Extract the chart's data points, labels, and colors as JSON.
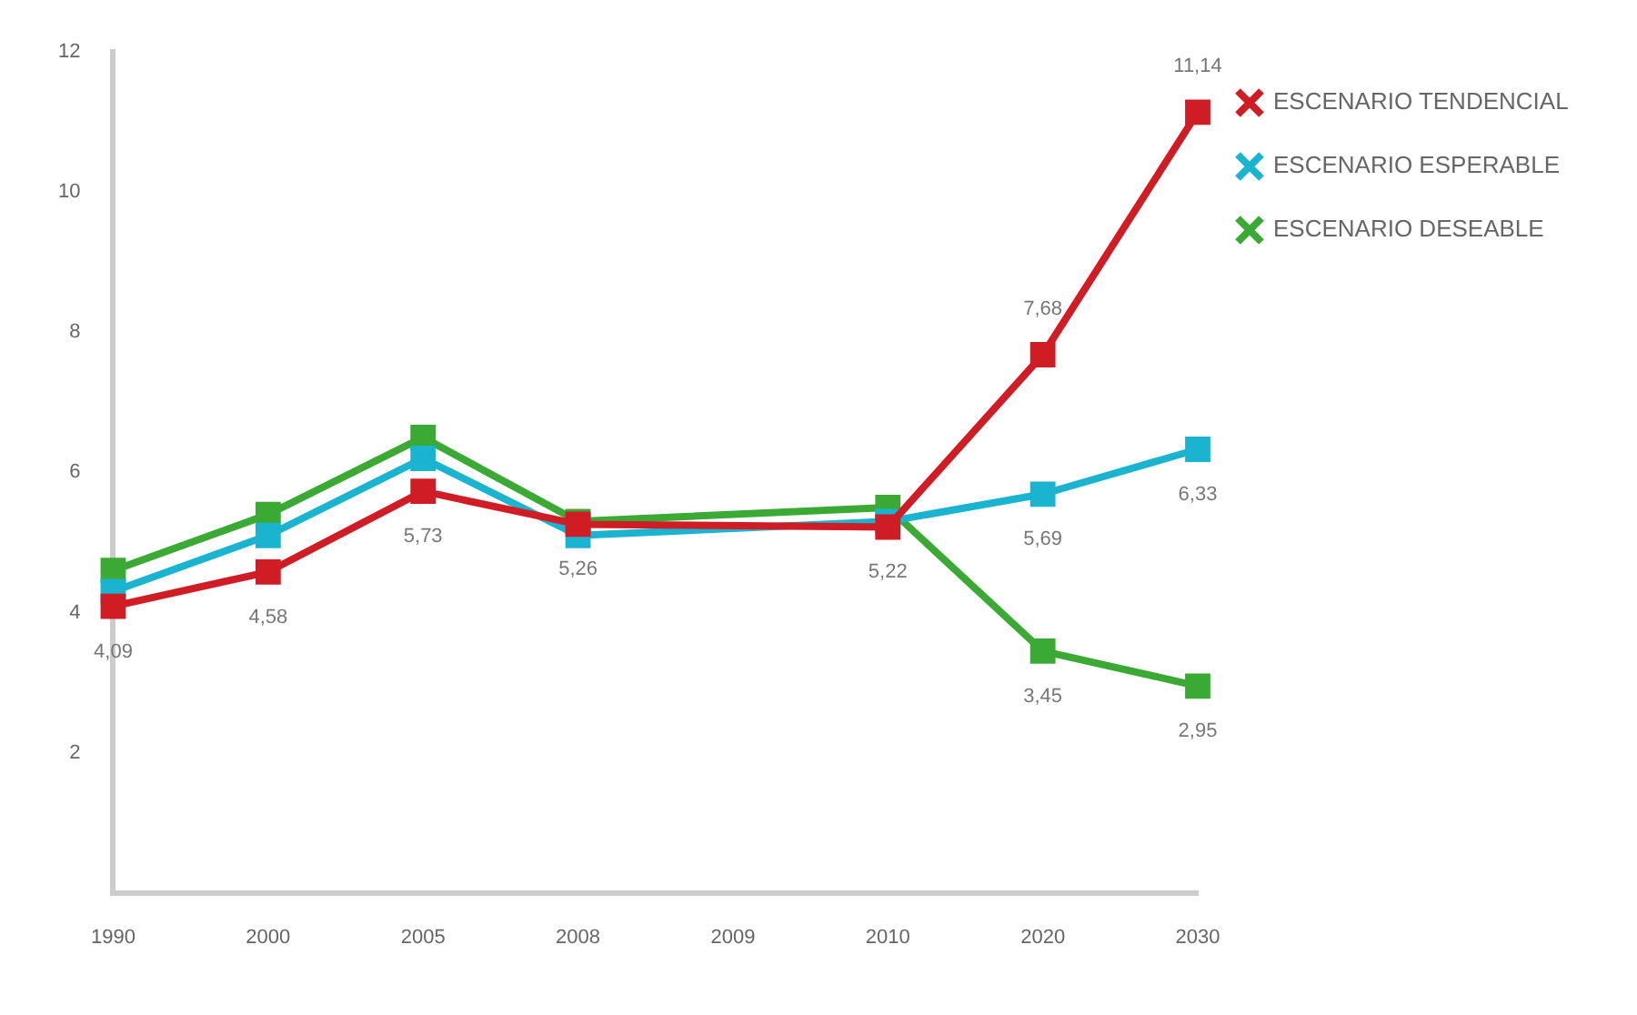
{
  "chart_data": {
    "type": "line",
    "categories": [
      "1990",
      "2000",
      "2005",
      "2008",
      "2009",
      "2010",
      "2020",
      "2030"
    ],
    "series": [
      {
        "name": "ESCENARIO TENDENCIAL",
        "color": "#d01c24",
        "values": [
          4.09,
          4.58,
          5.73,
          5.26,
          null,
          5.22,
          7.68,
          11.14
        ],
        "value_labels": [
          "4,09",
          "4,58",
          "5,73",
          "5,26",
          null,
          "5,22",
          "7,68",
          "11,14"
        ]
      },
      {
        "name": "ESCENARIO ESPERABLE",
        "color": "#1ab4d0",
        "values": [
          4.3,
          5.1,
          6.2,
          5.1,
          null,
          5.3,
          5.69,
          6.33
        ],
        "value_labels": [
          null,
          null,
          null,
          null,
          null,
          null,
          "5,69",
          "6,33"
        ]
      },
      {
        "name": "ESCENARIO DESEABLE",
        "color": "#3aaa35",
        "values": [
          4.6,
          5.4,
          6.5,
          5.3,
          null,
          5.5,
          3.45,
          2.95
        ],
        "value_labels": [
          null,
          null,
          null,
          null,
          null,
          null,
          "3,45",
          "2,95"
        ]
      }
    ],
    "ylim": [
      0,
      12
    ],
    "yticks": [
      2,
      4,
      6,
      8,
      10,
      12
    ],
    "grid": false,
    "legend": "top right",
    "marker": "square",
    "line_style": "solid"
  }
}
